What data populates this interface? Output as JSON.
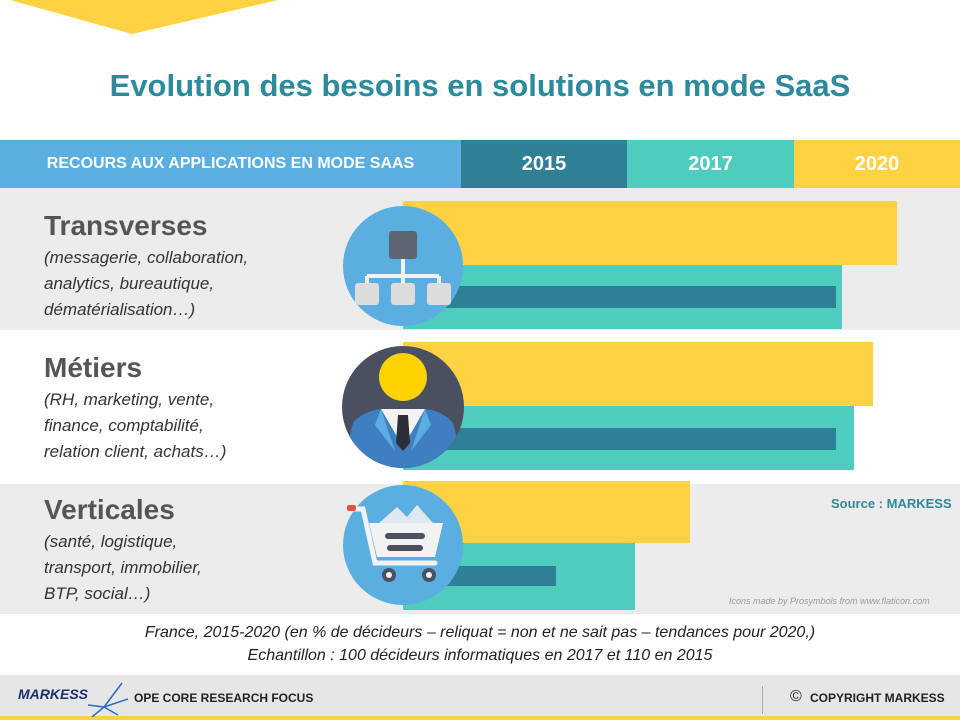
{
  "title": "Evolution des besoins en solutions en mode SaaS",
  "header": {
    "label": "RECOURS AUX APPLICATIONS EN MODE SAAS",
    "years": [
      "2015",
      "2017",
      "2020"
    ]
  },
  "colors": {
    "y2015": "#2f8097",
    "y2017": "#4ecdbe",
    "y2020": "#fed242",
    "header_label": "#5aaee0",
    "title": "#2b8a9c"
  },
  "categories": [
    {
      "name": "Transverses",
      "desc": "(messagerie,  collaboration,\nanalytics,  bureautique,\ndématérialisation…)",
      "icon": "network-hierarchy-icon"
    },
    {
      "name": "Métiers",
      "desc": "(RH,  marketing, vente,\nfinance,  comptabilité,\nrelation client,  achats…)",
      "icon": "business-person-icon"
    },
    {
      "name": "Verticales",
      "desc": "(santé,  logistique,\ntransport,  immobilier,\nBTP,  social…)",
      "icon": "shopping-cart-icon"
    }
  ],
  "chart_data": {
    "type": "bar",
    "orientation": "horizontal",
    "title": "Evolution des besoins en solutions en mode SaaS",
    "categories": [
      "Transverses",
      "Métiers",
      "Verticales"
    ],
    "series": [
      {
        "name": "2020",
        "values": [
          81,
          77,
          47
        ]
      },
      {
        "name": "2017",
        "values": [
          72,
          74,
          38
        ]
      },
      {
        "name": "2015",
        "values": [
          71,
          71,
          25
        ]
      }
    ],
    "value_unit": "% de décideurs",
    "xlim": [
      0,
      100
    ],
    "legend": "top (header band)",
    "source": "Source : MARKESS"
  },
  "source": "Source : MARKESS",
  "icons_credit": "Icons made by Prosymbols from www.flaticon.com",
  "footnotes": [
    "France, 2015-2020 (en % de décideurs – reliquat = non et ne sait pas – tendances pour 2020,)",
    "Echantillon : 100 décideurs informatiques en 2017 et 110 en 2015"
  ],
  "footer": {
    "brand": "MARKESS",
    "left": "OPE CORE RESEARCH FOCUS",
    "copyright_symbol": "©",
    "copyright": "COPYRIGHT MARKESS"
  }
}
